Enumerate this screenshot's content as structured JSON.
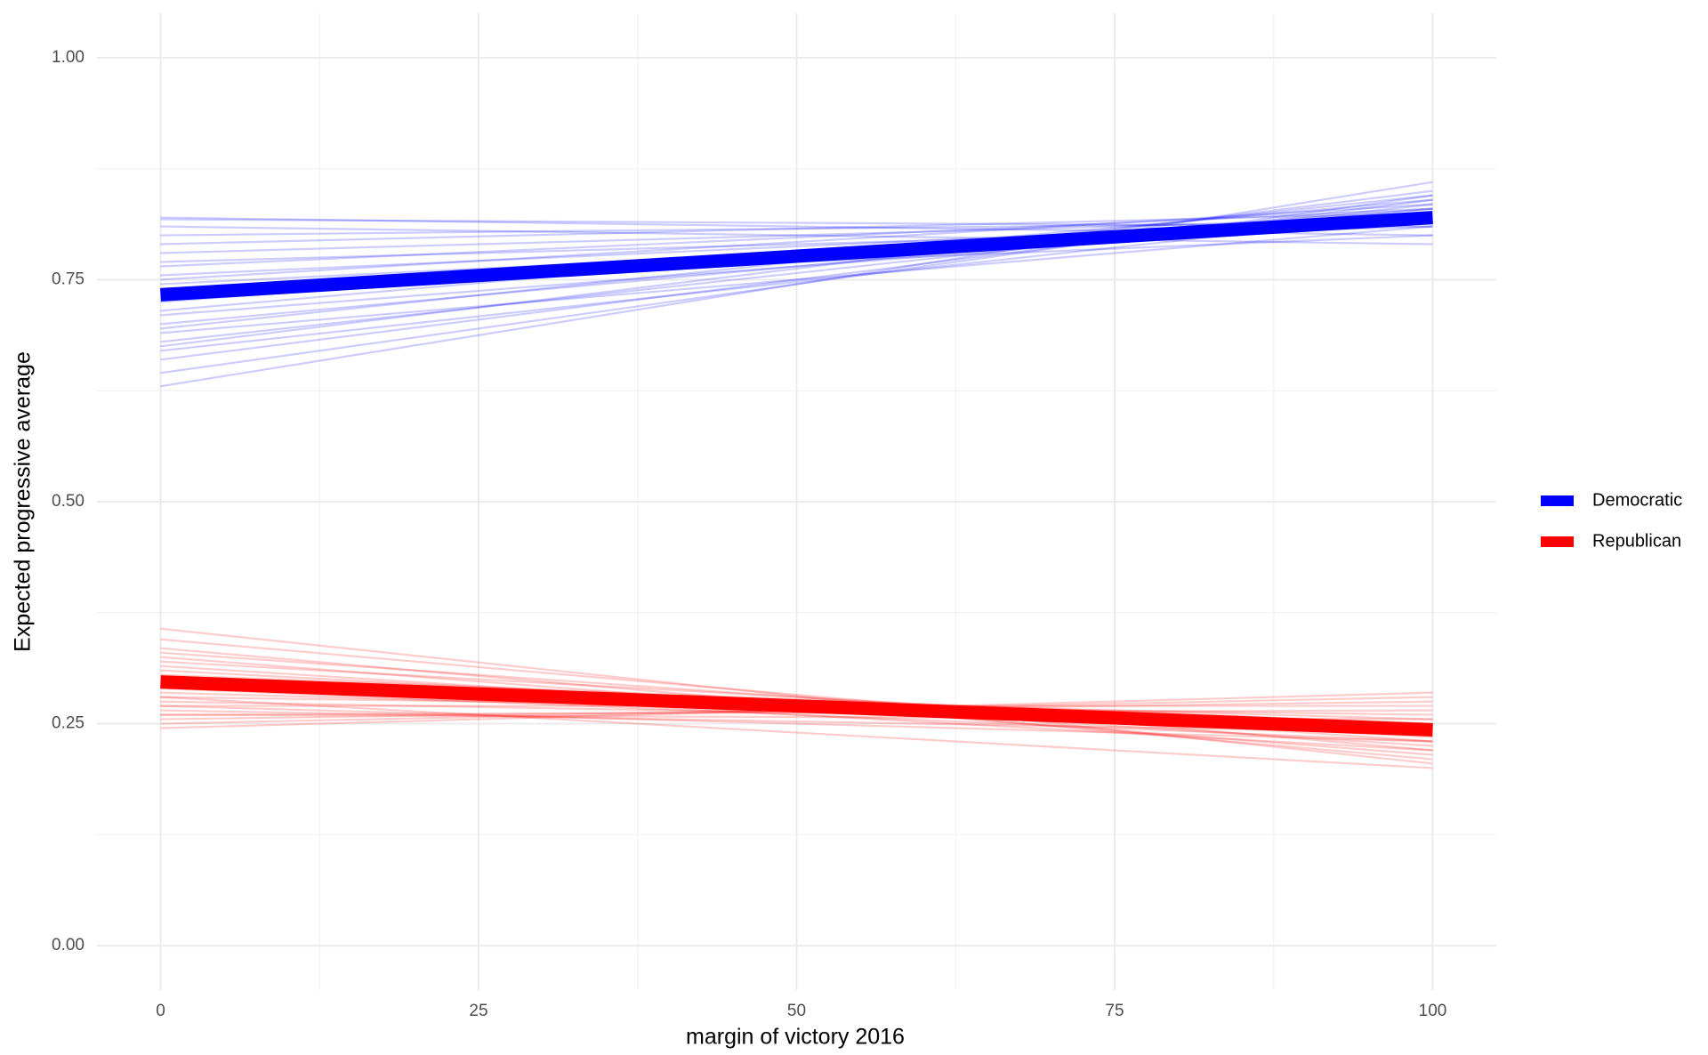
{
  "chart_data": {
    "type": "line",
    "x_label": "margin of victory 2016",
    "y_label": "Expected progressive average",
    "x": [
      0,
      100
    ],
    "xlim": [
      -5,
      105
    ],
    "ylim": [
      -0.05,
      1.05
    ],
    "xticks": [
      0,
      25,
      50,
      75,
      100
    ],
    "yticks": [
      {
        "value": 0,
        "label": "0.00"
      },
      {
        "value": 0.25,
        "label": "0.25"
      },
      {
        "value": 0.5,
        "label": "0.50"
      },
      {
        "value": 0.75,
        "label": "0.75"
      },
      {
        "value": 1,
        "label": "1.00"
      }
    ],
    "grid": true,
    "legend": "right",
    "series": [
      {
        "name": "Democratic",
        "color": "#0000ff",
        "values": [
          0.733,
          0.82
        ],
        "draws": [
          [
            0.82,
            0.8
          ],
          [
            0.818,
            0.81
          ],
          [
            0.81,
            0.79
          ],
          [
            0.8,
            0.815
          ],
          [
            0.79,
            0.825
          ],
          [
            0.78,
            0.82
          ],
          [
            0.77,
            0.81
          ],
          [
            0.765,
            0.83
          ],
          [
            0.755,
            0.82
          ],
          [
            0.75,
            0.835
          ],
          [
            0.745,
            0.815
          ],
          [
            0.74,
            0.8
          ],
          [
            0.73,
            0.825
          ],
          [
            0.725,
            0.83
          ],
          [
            0.715,
            0.84
          ],
          [
            0.71,
            0.82
          ],
          [
            0.7,
            0.83
          ],
          [
            0.695,
            0.845
          ],
          [
            0.69,
            0.81
          ],
          [
            0.68,
            0.835
          ],
          [
            0.675,
            0.85
          ],
          [
            0.67,
            0.825
          ],
          [
            0.66,
            0.84
          ],
          [
            0.645,
            0.845
          ],
          [
            0.63,
            0.86
          ]
        ]
      },
      {
        "name": "Republican",
        "color": "#ff0000",
        "values": [
          0.297,
          0.243
        ],
        "draws": [
          [
            0.357,
            0.205
          ],
          [
            0.345,
            0.22
          ],
          [
            0.335,
            0.21
          ],
          [
            0.33,
            0.23
          ],
          [
            0.325,
            0.215
          ],
          [
            0.32,
            0.24
          ],
          [
            0.315,
            0.225
          ],
          [
            0.31,
            0.235
          ],
          [
            0.305,
            0.25
          ],
          [
            0.3,
            0.22
          ],
          [
            0.298,
            0.24
          ],
          [
            0.295,
            0.255
          ],
          [
            0.29,
            0.23
          ],
          [
            0.285,
            0.245
          ],
          [
            0.28,
            0.26
          ],
          [
            0.275,
            0.25
          ],
          [
            0.27,
            0.27
          ],
          [
            0.265,
            0.24
          ],
          [
            0.26,
            0.265
          ],
          [
            0.255,
            0.275
          ],
          [
            0.25,
            0.28
          ],
          [
            0.245,
            0.285
          ],
          [
            0.28,
            0.2
          ],
          [
            0.27,
            0.23
          ],
          [
            0.26,
            0.255
          ]
        ]
      }
    ]
  }
}
